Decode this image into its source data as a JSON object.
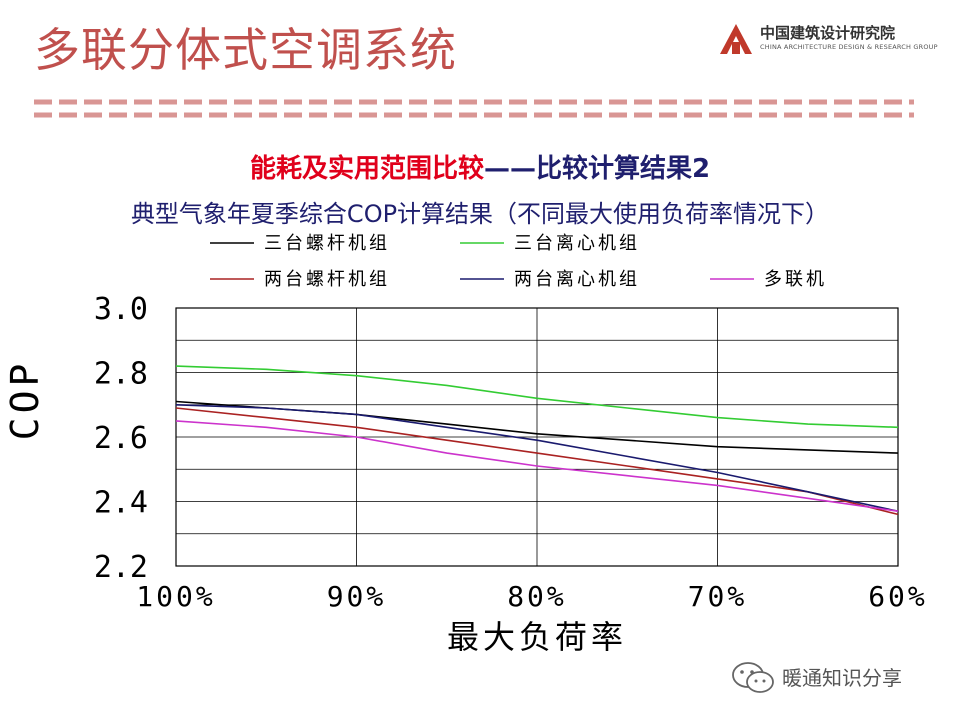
{
  "slide": {
    "title": "多联分体式空调系统",
    "subtitle_red": "能耗及实用范围比较",
    "subtitle_blue": "——比较计算结果2",
    "subtitle2": "典型气象年夏季综合COP计算结果（不同最大使用负荷率情况下）"
  },
  "logo": {
    "name_cn": "中国建筑设计研究院",
    "name_en": "CHINA ARCHITECTURE DESIGN & RESEARCH GROUP"
  },
  "watermark": {
    "text": "暖通知识分享"
  },
  "colors": {
    "title": "#c0504d",
    "subtitle_red": "#e0001b",
    "subtitle_blue": "#1f1f6e",
    "logo_red": "#c0392b"
  },
  "chart_data": {
    "type": "line",
    "title": "",
    "xlabel": "最大负荷率",
    "ylabel": "COP",
    "categories": [
      "100%",
      "90%",
      "80%",
      "70%",
      "60%"
    ],
    "x": [
      100,
      95,
      90,
      85,
      80,
      75,
      70,
      65,
      60
    ],
    "ylim": [
      2.2,
      3.0
    ],
    "yticks": [
      2.2,
      2.4,
      2.6,
      2.8,
      3.0
    ],
    "ytick_labels": [
      "2.2",
      "2.4",
      "2.6",
      "2.8",
      "3.0"
    ],
    "grid": true,
    "legend_position": "top",
    "series": [
      {
        "name": "三台螺杆机组",
        "color": "#000000",
        "values": [
          2.71,
          2.69,
          2.67,
          2.64,
          2.61,
          2.59,
          2.57,
          2.56,
          2.55
        ]
      },
      {
        "name": "三台离心机组",
        "color": "#33cc33",
        "values": [
          2.82,
          2.81,
          2.79,
          2.76,
          2.72,
          2.69,
          2.66,
          2.64,
          2.63
        ]
      },
      {
        "name": "两台螺杆机组",
        "color": "#aa2222",
        "values": [
          2.69,
          2.66,
          2.63,
          2.59,
          2.55,
          2.51,
          2.47,
          2.43,
          2.36
        ]
      },
      {
        "name": "两台离心机组",
        "color": "#1a1a6e",
        "values": [
          2.7,
          2.69,
          2.67,
          2.63,
          2.59,
          2.54,
          2.49,
          2.43,
          2.37
        ]
      },
      {
        "name": "多联机",
        "color": "#cc33cc",
        "values": [
          2.65,
          2.63,
          2.6,
          2.55,
          2.51,
          2.48,
          2.45,
          2.41,
          2.37
        ]
      }
    ]
  }
}
